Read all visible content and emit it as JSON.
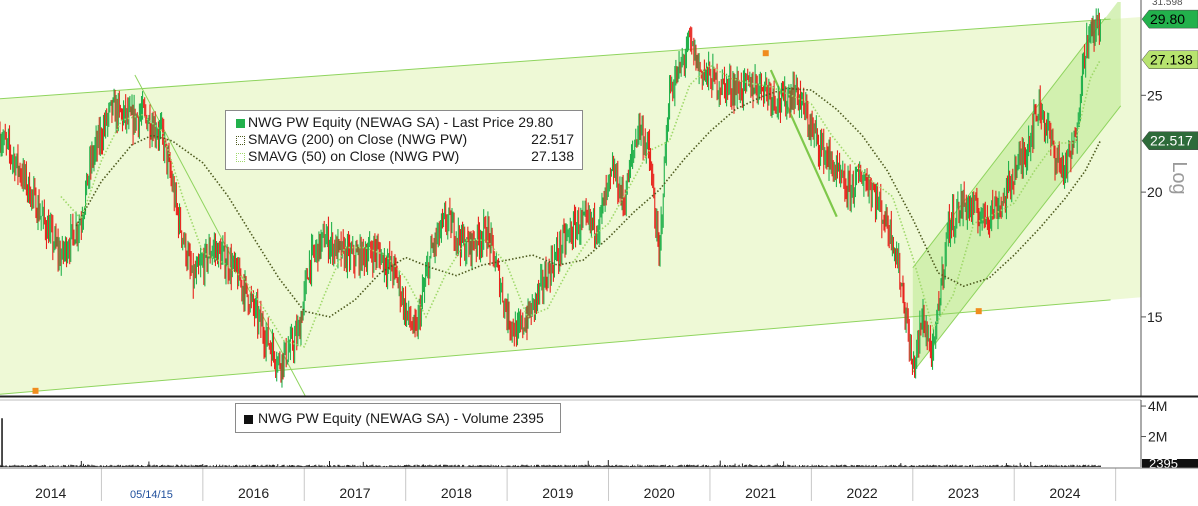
{
  "chart_data": [
    {
      "type": "line",
      "scale": "log",
      "ylim": [
        12.5,
        31
      ],
      "xlim": [
        2013.5,
        2024.75
      ],
      "x_tick_labels": [
        "2014",
        "2015",
        "2016",
        "2017",
        "2018",
        "2019",
        "2020",
        "2021",
        "2022",
        "2023",
        "2024"
      ],
      "x_tick_values": [
        2014,
        2015,
        2016,
        2017,
        2018,
        2019,
        2020,
        2021,
        2022,
        2023,
        2024
      ],
      "y_ticks": [
        15,
        20,
        25
      ],
      "y_tick_labels": [
        "15",
        "20",
        "25"
      ],
      "axis_label": "Log",
      "date_marker": "05/14/15",
      "legend": [
        {
          "label": "NWG PW Equity (NEWAG SA) - Last Price",
          "value": "29.80",
          "color": "#22b14c"
        },
        {
          "label": "SMAVG (200)  on Close (NWG PW)",
          "value": "22.517",
          "color": "#6b7a2a"
        },
        {
          "label": "SMAVG (50)  on Close (NWG PW)",
          "value": "27.138",
          "color": "#a6d86e"
        }
      ],
      "price_flags": [
        {
          "label": "29.80",
          "value": 29.8,
          "color": "#22b14c",
          "text_color": "#000000"
        },
        {
          "label": "27.138",
          "value": 27.138,
          "color": "#b7e36f",
          "text_color": "#000000"
        },
        {
          "label": "22.517",
          "value": 22.517,
          "color": "#2e6b3a",
          "text_color": "#ffffff"
        }
      ],
      "top_clip_label": "31.598",
      "series": [
        {
          "name": "Last Price",
          "color_up": "#22b14c",
          "color_down": "#e8231c",
          "x": [
            2013.5,
            2013.7,
            2013.9,
            2014.1,
            2014.3,
            2014.4,
            2014.6,
            2014.8,
            2014.9,
            2015.0,
            2015.1,
            2015.25,
            2015.4,
            2015.6,
            2015.8,
            2015.95,
            2016.1,
            2016.25,
            2016.35,
            2016.45,
            2016.55,
            2016.7,
            2016.85,
            2017.0,
            2017.2,
            2017.4,
            2017.5,
            2017.6,
            2017.75,
            2017.9,
            2018.1,
            2018.3,
            2018.5,
            2018.6,
            2018.75,
            2018.9,
            2019.05,
            2019.2,
            2019.4,
            2019.55,
            2019.65,
            2019.8,
            2019.9,
            2020.0,
            2020.1,
            2020.2,
            2020.3,
            2020.4,
            2020.6,
            2020.8,
            2021.0,
            2021.2,
            2021.35,
            2021.5,
            2021.7,
            2021.85,
            2022.0,
            2022.1,
            2022.2,
            2022.3,
            2022.4,
            2022.5,
            2022.6,
            2022.7,
            2022.85,
            2023.0,
            2023.2,
            2023.4,
            2023.5,
            2023.6,
            2023.75,
            2023.9,
            2024.0,
            2024.1,
            2024.2,
            2024.35
          ],
          "values": [
            22.8,
            21.0,
            19.0,
            17.2,
            18.8,
            21.5,
            24.2,
            23.6,
            24.0,
            23.4,
            22.8,
            19.0,
            16.3,
            17.6,
            16.8,
            15.7,
            14.5,
            13.5,
            13.9,
            14.5,
            17.0,
            18.0,
            17.4,
            17.2,
            17.5,
            16.6,
            15.2,
            14.4,
            17.4,
            18.8,
            17.6,
            18.3,
            15.1,
            14.4,
            15.3,
            16.6,
            17.8,
            18.6,
            18.6,
            21.0,
            19.5,
            23.4,
            21.8,
            17.0,
            25.2,
            26.4,
            28.3,
            26.5,
            25.6,
            25.4,
            25.7,
            24.6,
            25.3,
            23.1,
            21.3,
            20.0,
            20.8,
            20.2,
            19.0,
            18.1,
            15.9,
            13.2,
            15.0,
            13.6,
            18.5,
            19.5,
            18.9,
            19.6,
            21.0,
            21.8,
            24.5,
            21.8,
            21.0,
            22.5,
            28.0,
            29.8
          ]
        },
        {
          "name": "SMAVG (200)",
          "color": "#4d5a1e",
          "x": [
            2014.25,
            2014.5,
            2014.8,
            2015.0,
            2015.2,
            2015.5,
            2015.75,
            2016.0,
            2016.25,
            2016.5,
            2016.75,
            2017.0,
            2017.25,
            2017.5,
            2017.75,
            2018.0,
            2018.25,
            2018.5,
            2018.75,
            2019.0,
            2019.25,
            2019.5,
            2019.75,
            2020.0,
            2020.25,
            2020.5,
            2020.75,
            2021.0,
            2021.25,
            2021.5,
            2021.75,
            2022.0,
            2022.25,
            2022.5,
            2022.75,
            2023.0,
            2023.25,
            2023.5,
            2023.75,
            2024.0,
            2024.2,
            2024.35
          ],
          "values": [
            18.5,
            20.5,
            22.3,
            22.8,
            22.5,
            21.4,
            19.8,
            18.0,
            16.4,
            15.2,
            15.0,
            15.6,
            16.6,
            17.2,
            16.8,
            16.5,
            16.9,
            17.1,
            17.3,
            16.9,
            17.1,
            18.0,
            19.1,
            20.1,
            21.6,
            23.0,
            24.2,
            24.9,
            25.4,
            25.3,
            24.2,
            22.8,
            21.0,
            18.8,
            16.6,
            16.1,
            16.4,
            17.3,
            18.4,
            19.7,
            21.0,
            22.517
          ]
        },
        {
          "name": "SMAVG (50)",
          "color": "#9fd86a",
          "x": [
            2014.1,
            2014.3,
            2014.5,
            2014.7,
            2014.9,
            2015.1,
            2015.3,
            2015.5,
            2015.7,
            2015.9,
            2016.1,
            2016.3,
            2016.5,
            2016.7,
            2016.9,
            2017.1,
            2017.3,
            2017.5,
            2017.7,
            2017.9,
            2018.1,
            2018.3,
            2018.5,
            2018.7,
            2018.9,
            2019.1,
            2019.3,
            2019.5,
            2019.7,
            2019.9,
            2020.1,
            2020.3,
            2020.5,
            2020.7,
            2020.9,
            2021.1,
            2021.3,
            2021.5,
            2021.7,
            2021.9,
            2022.1,
            2022.3,
            2022.5,
            2022.7,
            2022.9,
            2023.1,
            2023.3,
            2023.5,
            2023.7,
            2023.9,
            2024.1,
            2024.25,
            2024.35
          ],
          "values": [
            19.8,
            18.8,
            21.5,
            23.6,
            23.9,
            23.0,
            19.8,
            17.4,
            17.0,
            16.4,
            15.3,
            14.2,
            14.0,
            15.8,
            17.6,
            17.6,
            17.3,
            16.4,
            15.0,
            16.6,
            17.9,
            17.9,
            16.9,
            15.0,
            15.3,
            16.7,
            17.9,
            18.6,
            20.2,
            22.0,
            22.5,
            25.6,
            26.8,
            26.0,
            25.7,
            25.5,
            25.0,
            24.5,
            22.8,
            21.5,
            20.5,
            19.8,
            17.2,
            14.6,
            15.8,
            18.6,
            19.0,
            19.5,
            21.0,
            22.4,
            22.4,
            26.0,
            27.138
          ]
        }
      ],
      "channels": [
        {
          "name": "main-channel-upper",
          "x": [
            2013.5,
            2024.45
          ],
          "values": [
            24.8,
            29.8
          ]
        },
        {
          "name": "main-channel-lower",
          "x": [
            2013.5,
            2024.45
          ],
          "values": [
            12.55,
            15.6
          ]
        },
        {
          "name": "steep-channel-upper",
          "x": [
            2022.5,
            2024.4
          ],
          "values": [
            16.8,
            29.9
          ]
        },
        {
          "name": "steep-channel-lower",
          "x": [
            2022.5,
            2024.55
          ],
          "values": [
            13.2,
            24.4
          ]
        },
        {
          "name": "decline-trend-2015",
          "x": [
            2014.83,
            2016.8
          ],
          "values": [
            26.2,
            11.0
          ]
        },
        {
          "name": "decline-trend-2021",
          "x": [
            2021.1,
            2021.75
          ],
          "values": [
            26.5,
            18.9
          ]
        }
      ],
      "channel_markers": [
        {
          "x": 2013.85,
          "value": 12.65
        },
        {
          "x": 2021.05,
          "value": 27.55
        },
        {
          "x": 2023.15,
          "value": 15.2
        }
      ]
    },
    {
      "type": "bar",
      "legend": {
        "label": "NWG PW Equity (NEWAG SA) - Volume",
        "value": "2395"
      },
      "y_ticks": [
        2000000,
        4000000
      ],
      "y_tick_labels": [
        "2M",
        "4M"
      ],
      "ylim": [
        0,
        4200000
      ],
      "last_label": "2395",
      "spike": {
        "x": 2013.52,
        "value": 3200000
      },
      "baseline_volume": 90000
    }
  ]
}
